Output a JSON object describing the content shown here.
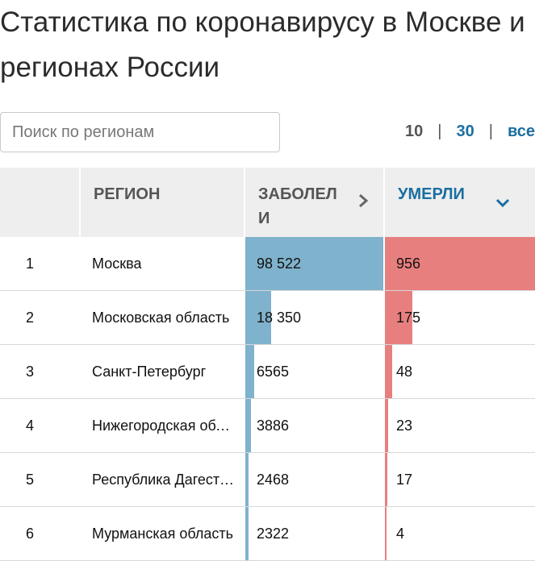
{
  "title": "Статистика по коронавирусу в Москве и регионах России",
  "search": {
    "placeholder": "Поиск по регионам"
  },
  "pager": {
    "options": [
      "10",
      "30",
      "все"
    ],
    "separator": "|",
    "active": "10"
  },
  "table": {
    "headers": {
      "num": "",
      "region": "РЕГИОН",
      "cases": "ЗАБОЛЕЛИ",
      "deaths": "УМЕРЛИ"
    },
    "sort_column": "deaths",
    "rows": [
      {
        "num": "1",
        "region": "Москва",
        "cases": "98 522",
        "deaths": "956"
      },
      {
        "num": "2",
        "region": "Московская область",
        "cases": "18 350",
        "deaths": "175"
      },
      {
        "num": "3",
        "region": "Санкт-Петербург",
        "cases": "6565",
        "deaths": "48"
      },
      {
        "num": "4",
        "region": "Нижегородская область",
        "cases": "3886",
        "deaths": "23"
      },
      {
        "num": "5",
        "region": "Республика Дагестан",
        "cases": "2468",
        "deaths": "17"
      },
      {
        "num": "6",
        "region": "Мурманская область",
        "cases": "2322",
        "deaths": "4"
      }
    ]
  },
  "colors": {
    "cases_bar": "#7fb2cc",
    "deaths_bar": "#e87f7f",
    "accent": "#1a6fa0"
  }
}
